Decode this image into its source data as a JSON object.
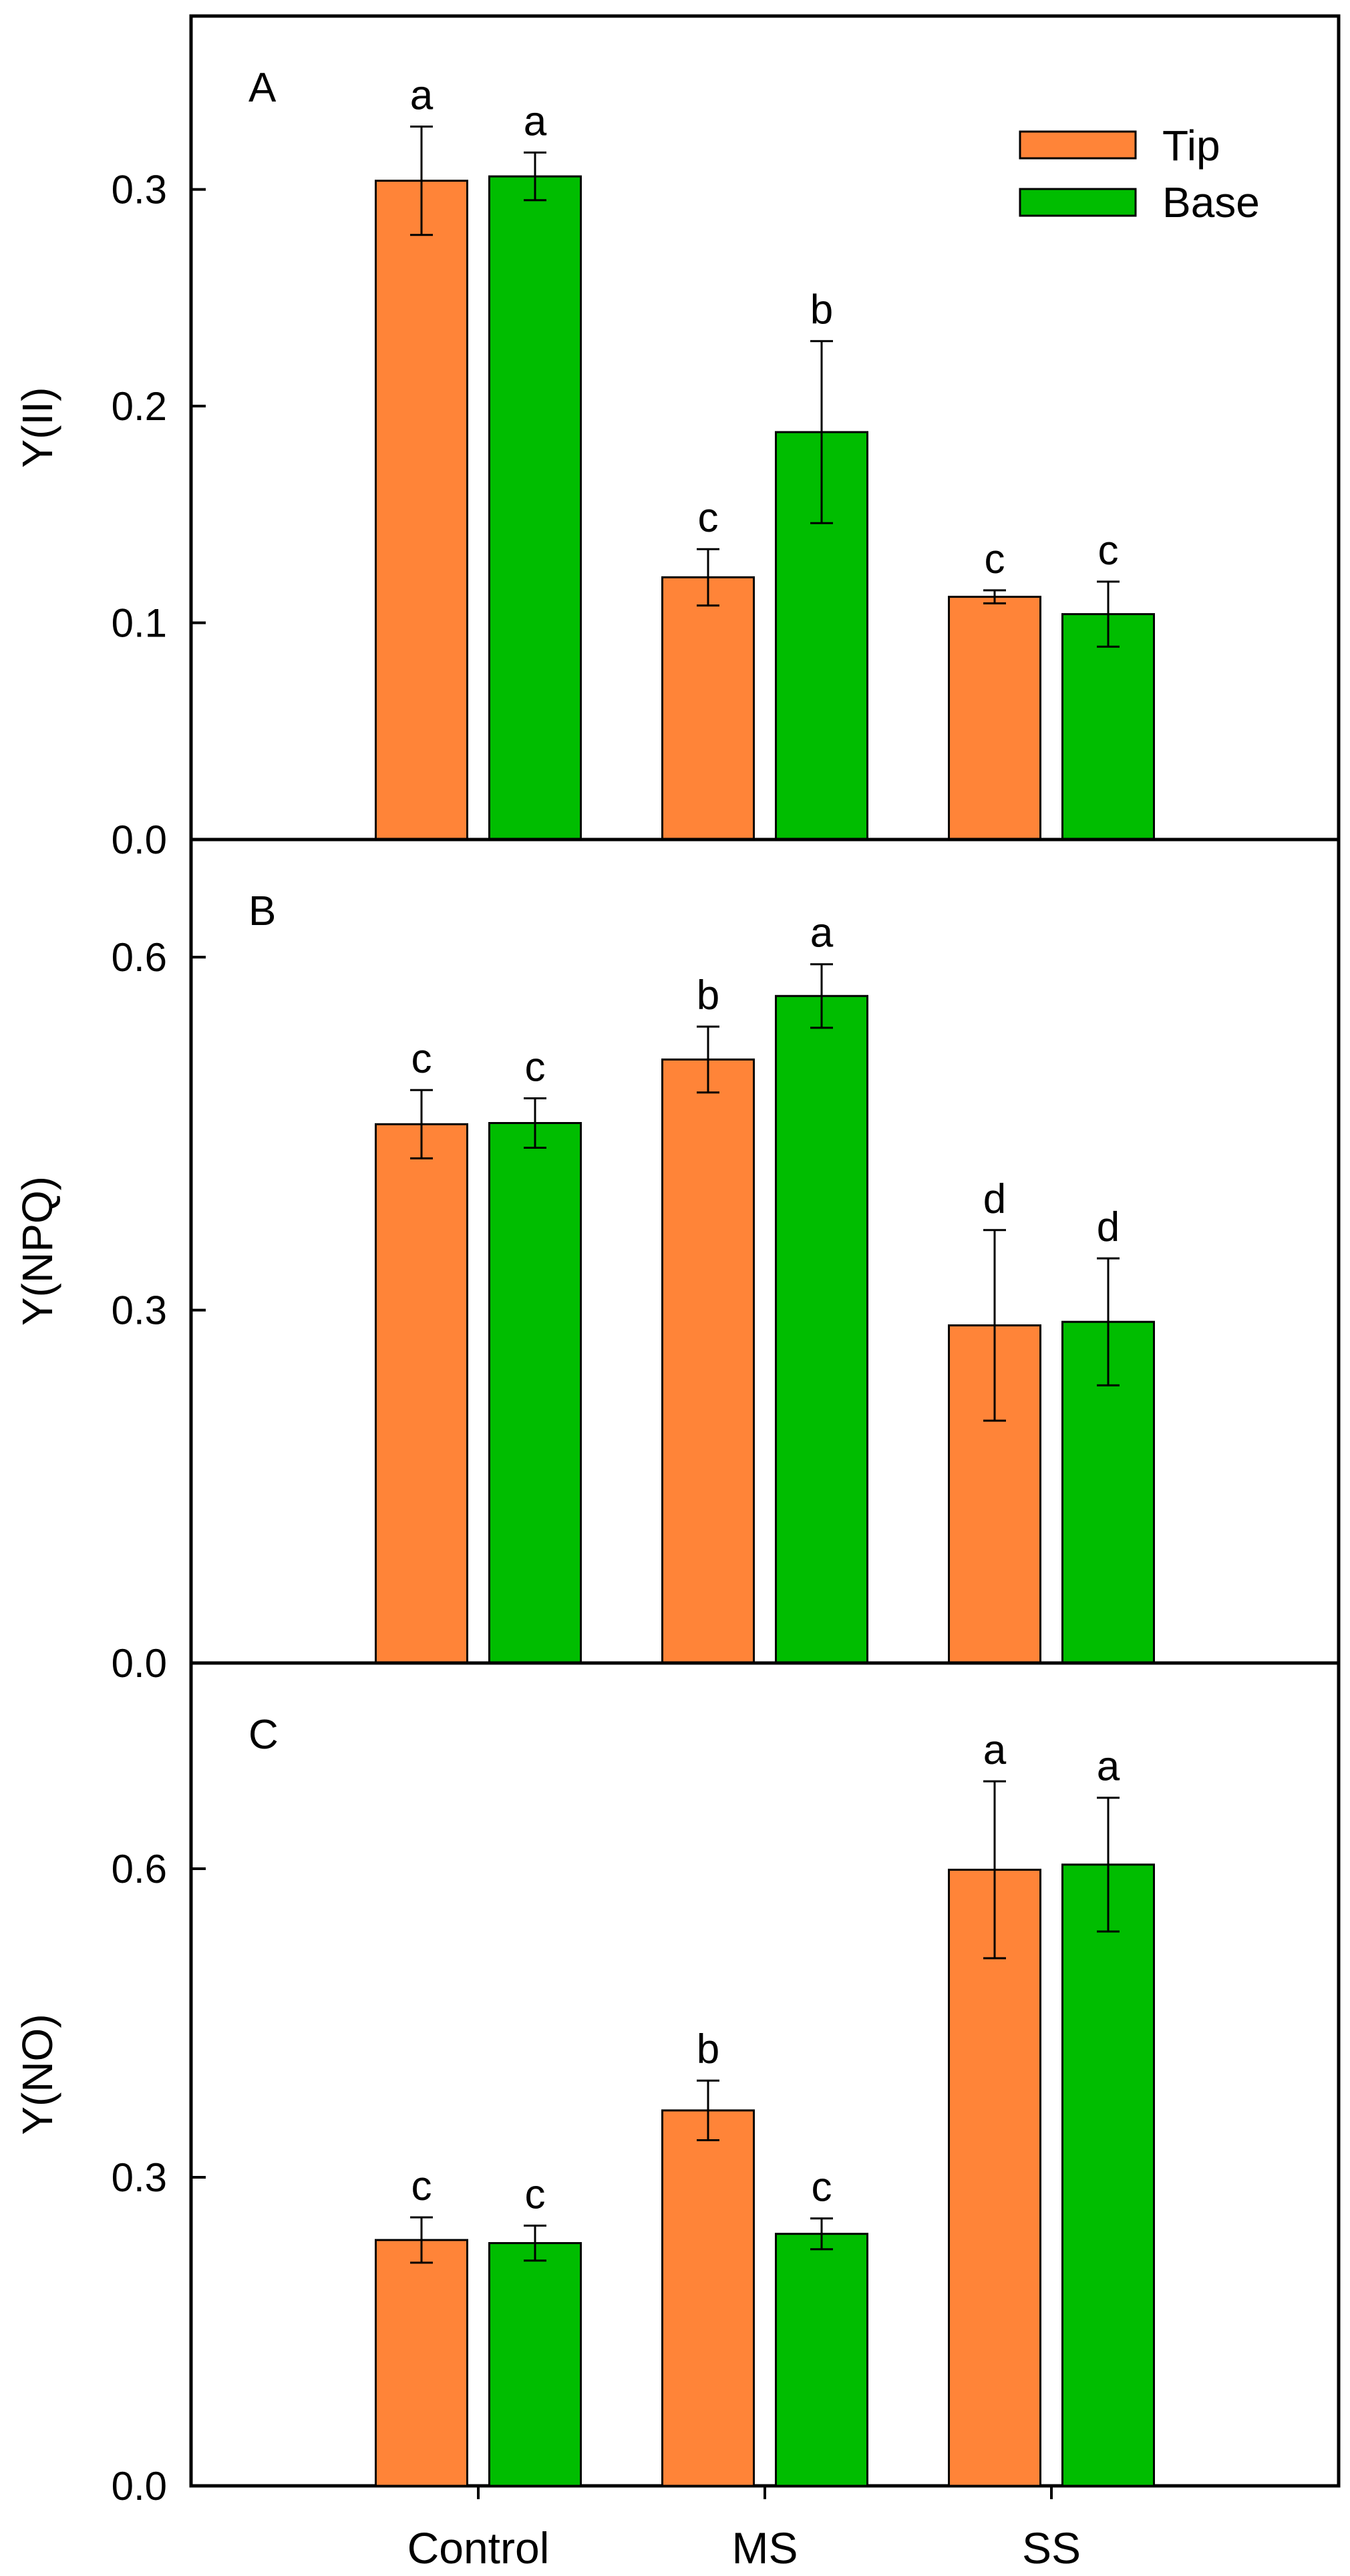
{
  "chart_data": {
    "type": "bar",
    "categories": [
      "Control",
      "MS",
      "SS"
    ],
    "series_names": [
      "Tip",
      "Base"
    ],
    "colors": {
      "Tip": "#FF8438",
      "Base": "#00BD00"
    },
    "legend": {
      "position": "top-right",
      "entries": [
        "Tip",
        "Base"
      ]
    },
    "panels": [
      {
        "letter": "A",
        "ylabel": "Y(II)",
        "ylim": [
          0,
          0.38
        ],
        "yticks": [
          "0.0",
          "0.1",
          "0.2",
          "0.3"
        ],
        "series": [
          {
            "name": "Tip",
            "values": [
              0.304,
              0.121,
              0.112
            ],
            "errors": [
              0.025,
              0.013,
              0.003
            ],
            "letters": [
              "a",
              "c",
              "c"
            ]
          },
          {
            "name": "Base",
            "values": [
              0.306,
              0.188,
              0.104
            ],
            "errors": [
              0.011,
              0.042,
              0.015
            ],
            "letters": [
              "a",
              "b",
              "c"
            ]
          }
        ]
      },
      {
        "letter": "B",
        "ylabel": "Y(NPQ)",
        "ylim": [
          0,
          0.7
        ],
        "yticks": [
          "0.0",
          "0.3",
          "0.6"
        ],
        "series": [
          {
            "name": "Tip",
            "values": [
              0.458,
              0.513,
              0.287
            ],
            "errors": [
              0.029,
              0.028,
              0.081
            ],
            "letters": [
              "c",
              "b",
              "d"
            ]
          },
          {
            "name": "Base",
            "values": [
              0.459,
              0.567,
              0.29
            ],
            "errors": [
              0.021,
              0.027,
              0.054
            ],
            "letters": [
              "c",
              "a",
              "d"
            ]
          }
        ]
      },
      {
        "letter": "C",
        "ylabel": "Y(NO)",
        "ylim": [
          0,
          0.8
        ],
        "yticks": [
          "0.0",
          "0.3",
          "0.6"
        ],
        "series": [
          {
            "name": "Tip",
            "values": [
              0.239,
              0.365,
              0.599
            ],
            "errors": [
              0.022,
              0.029,
              0.086
            ],
            "letters": [
              "c",
              "b",
              "a"
            ]
          },
          {
            "name": "Base",
            "values": [
              0.236,
              0.245,
              0.604
            ],
            "errors": [
              0.017,
              0.015,
              0.065
            ],
            "letters": [
              "c",
              "c",
              "a"
            ]
          }
        ]
      }
    ]
  }
}
